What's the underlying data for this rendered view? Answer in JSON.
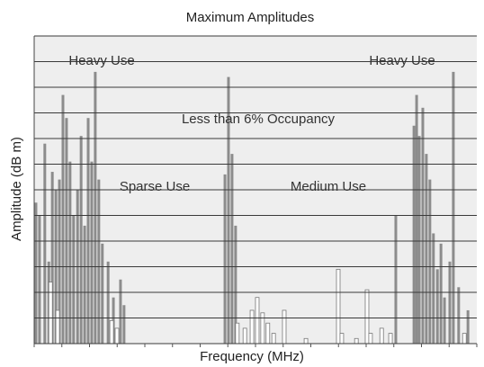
{
  "chart_data": {
    "type": "bar",
    "title": "Maximum Amplitudes",
    "x_label": "Frequency (MHz)",
    "y_label": "Amplitude (dB m)",
    "annotations": [
      "Heavy Use",
      "Heavy Use",
      "Less than 6% Occupancy",
      "Sparse Use",
      "Medium Use"
    ],
    "xlim": [
      0,
      100
    ],
    "ylim": [
      0,
      12
    ],
    "yticks": [
      0,
      1,
      2,
      3,
      4,
      5,
      6,
      7,
      8,
      9,
      10,
      11,
      12
    ],
    "grid": true,
    "series": [
      {
        "color": "#8c8c8c",
        "x": [
          0.4,
          1.2,
          2.4,
          3.3,
          4.1,
          4.9,
          5.7,
          6.5,
          7.3,
          8.1,
          8.9,
          9.8,
          10.6,
          11.4,
          12.2,
          13.0,
          13.8,
          14.6,
          15.4,
          16.7,
          17.9,
          19.5,
          20.3,
          43.1,
          43.9,
          44.7,
          45.5,
          81.7,
          85.8,
          86.4,
          87.0,
          87.8,
          88.6,
          89.4,
          90.2,
          91.1,
          91.9,
          92.7,
          93.9,
          94.7,
          95.9,
          98.0
        ],
        "values": [
          5.5,
          5.0,
          7.8,
          3.2,
          6.7,
          6.0,
          6.4,
          9.7,
          8.8,
          7.1,
          5.0,
          6.0,
          8.1,
          4.6,
          8.8,
          7.1,
          10.6,
          6.4,
          3.9,
          3.2,
          1.8,
          2.5,
          1.5,
          6.6,
          10.4,
          7.4,
          4.6,
          5.0,
          8.5,
          9.7,
          8.1,
          9.2,
          7.4,
          6.4,
          4.3,
          2.9,
          3.9,
          1.8,
          3.2,
          10.6,
          2.2,
          1.3
        ]
      },
      {
        "color": "#ffffff",
        "x": [
          3.7,
          5.3,
          17.5,
          18.7,
          45.9,
          47.6,
          49.2,
          50.4,
          51.6,
          52.8,
          54.1,
          56.5,
          61.4,
          68.7,
          69.5,
          72.8,
          75.2,
          76.0,
          78.5,
          80.5,
          97.2
        ],
        "values": [
          2.4,
          1.3,
          0.9,
          0.6,
          0.8,
          0.6,
          1.3,
          1.8,
          1.2,
          0.8,
          0.4,
          1.3,
          0.2,
          2.9,
          0.4,
          0.2,
          2.1,
          0.4,
          0.6,
          0.4,
          0.4
        ]
      }
    ]
  }
}
